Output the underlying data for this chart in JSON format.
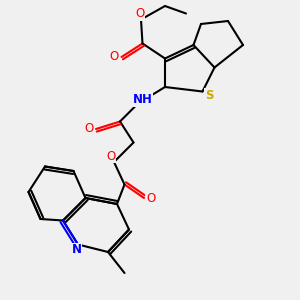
{
  "background_color": "#f0f0f0",
  "figsize": [
    3.0,
    3.0
  ],
  "dpi": 100,
  "bond_color": "#000000",
  "bond_width": 1.5,
  "atom_colors": {
    "O": "#ff0000",
    "N": "#0000ff",
    "S": "#ccaa00",
    "C": "#000000",
    "H": "#404040"
  }
}
